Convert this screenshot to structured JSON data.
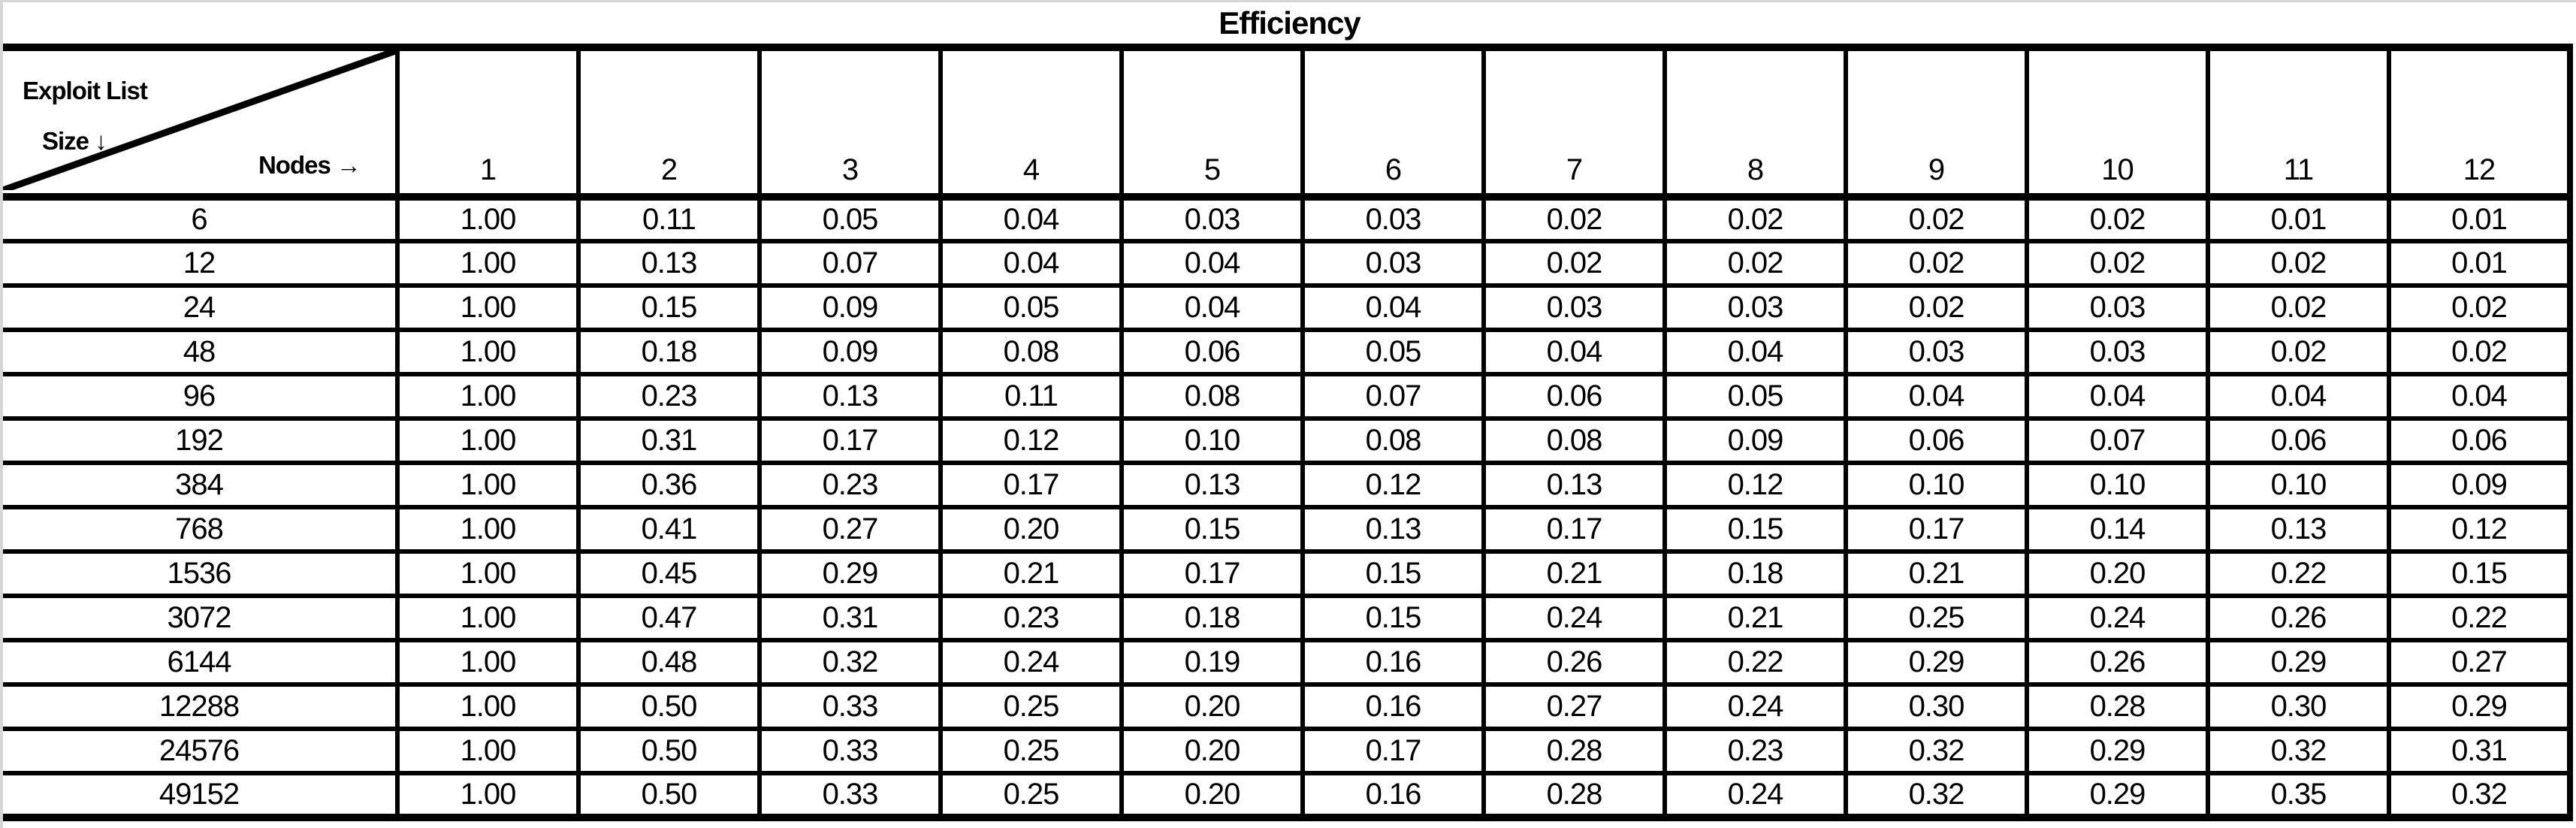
{
  "title": "Efficiency",
  "corner": {
    "line1": "Exploit List",
    "line2": "Size ↓",
    "line3": "Nodes →"
  },
  "colors": {
    "border": "#000000",
    "background": "#ffffff",
    "text": "#000000",
    "window_edge": "#d6d6d6"
  },
  "chart_data": {
    "type": "table",
    "title": "Efficiency",
    "row_axis_label": "Exploit List Size",
    "col_axis_label": "Nodes",
    "columns": [
      1,
      2,
      3,
      4,
      5,
      6,
      7,
      8,
      9,
      10,
      11,
      12
    ],
    "row_labels": [
      6,
      12,
      24,
      48,
      96,
      192,
      384,
      768,
      1536,
      3072,
      6144,
      12288,
      24576,
      49152
    ],
    "values": [
      [
        1.0,
        0.11,
        0.05,
        0.04,
        0.03,
        0.03,
        0.02,
        0.02,
        0.02,
        0.02,
        0.01,
        0.01
      ],
      [
        1.0,
        0.13,
        0.07,
        0.04,
        0.04,
        0.03,
        0.02,
        0.02,
        0.02,
        0.02,
        0.02,
        0.01
      ],
      [
        1.0,
        0.15,
        0.09,
        0.05,
        0.04,
        0.04,
        0.03,
        0.03,
        0.02,
        0.03,
        0.02,
        0.02
      ],
      [
        1.0,
        0.18,
        0.09,
        0.08,
        0.06,
        0.05,
        0.04,
        0.04,
        0.03,
        0.03,
        0.02,
        0.02
      ],
      [
        1.0,
        0.23,
        0.13,
        0.11,
        0.08,
        0.07,
        0.06,
        0.05,
        0.04,
        0.04,
        0.04,
        0.04
      ],
      [
        1.0,
        0.31,
        0.17,
        0.12,
        0.1,
        0.08,
        0.08,
        0.09,
        0.06,
        0.07,
        0.06,
        0.06
      ],
      [
        1.0,
        0.36,
        0.23,
        0.17,
        0.13,
        0.12,
        0.13,
        0.12,
        0.1,
        0.1,
        0.1,
        0.09
      ],
      [
        1.0,
        0.41,
        0.27,
        0.2,
        0.15,
        0.13,
        0.17,
        0.15,
        0.17,
        0.14,
        0.13,
        0.12
      ],
      [
        1.0,
        0.45,
        0.29,
        0.21,
        0.17,
        0.15,
        0.21,
        0.18,
        0.21,
        0.2,
        0.22,
        0.15
      ],
      [
        1.0,
        0.47,
        0.31,
        0.23,
        0.18,
        0.15,
        0.24,
        0.21,
        0.25,
        0.24,
        0.26,
        0.22
      ],
      [
        1.0,
        0.48,
        0.32,
        0.24,
        0.19,
        0.16,
        0.26,
        0.22,
        0.29,
        0.26,
        0.29,
        0.27
      ],
      [
        1.0,
        0.5,
        0.33,
        0.25,
        0.2,
        0.16,
        0.27,
        0.24,
        0.3,
        0.28,
        0.3,
        0.29
      ],
      [
        1.0,
        0.5,
        0.33,
        0.25,
        0.2,
        0.17,
        0.28,
        0.23,
        0.32,
        0.29,
        0.32,
        0.31
      ],
      [
        1.0,
        0.5,
        0.33,
        0.25,
        0.2,
        0.16,
        0.28,
        0.24,
        0.32,
        0.29,
        0.35,
        0.32
      ]
    ]
  }
}
